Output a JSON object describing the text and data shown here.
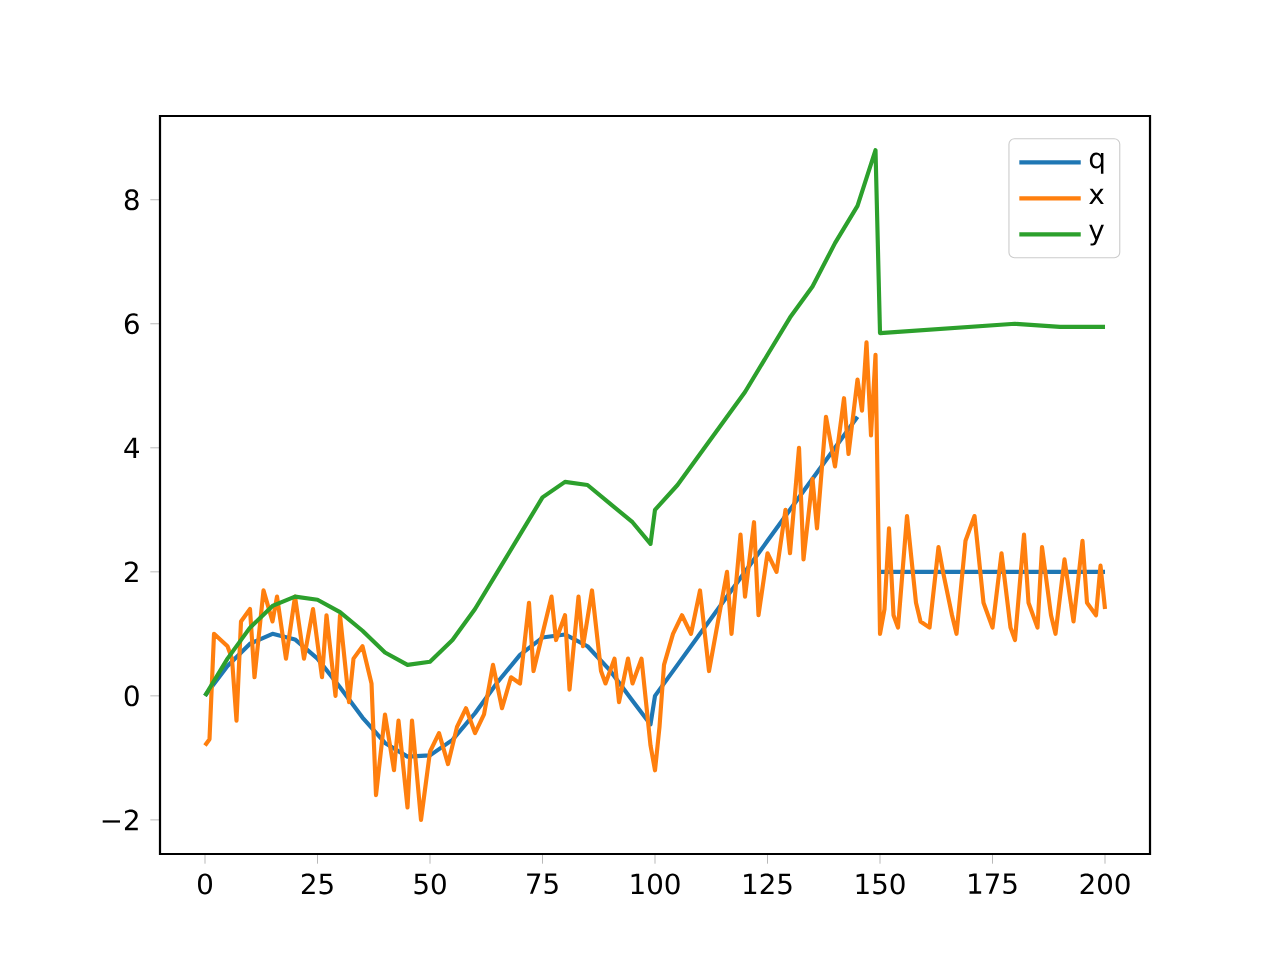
{
  "chart_data": {
    "type": "line",
    "xlim": [
      -10,
      210
    ],
    "ylim": [
      -2.55,
      9.35
    ],
    "xticks": [
      0,
      25,
      50,
      75,
      100,
      125,
      150,
      175,
      200
    ],
    "yticks": [
      {
        "value": -2,
        "label": "−2"
      },
      0,
      2,
      4,
      6,
      8
    ],
    "legend": "top right",
    "grid": false,
    "marker": "none",
    "line_style": "solid",
    "series": [
      {
        "name": "q",
        "color": "#1f77b4",
        "x": [
          0,
          5,
          10,
          15,
          20,
          25,
          30,
          35,
          40,
          45,
          50,
          55,
          60,
          65,
          70,
          75,
          80,
          85,
          90,
          95,
          99,
          100,
          105,
          110,
          115,
          120,
          125,
          130,
          135,
          140,
          145,
          149,
          150,
          200
        ],
        "values": [
          0,
          0.48,
          0.84,
          1.0,
          0.91,
          0.6,
          0.14,
          -0.35,
          -0.76,
          -0.98,
          -0.96,
          -0.71,
          -0.28,
          0.22,
          0.66,
          0.94,
          0.99,
          0.8,
          0.41,
          -0.08,
          -0.46,
          0,
          0.5,
          1.0,
          1.5,
          2.0,
          2.5,
          3.0,
          3.5,
          4.0,
          4.5,
          null,
          2,
          2
        ]
      },
      {
        "name": "x",
        "color": "#ff7f0e",
        "x": [
          0,
          1,
          2,
          5,
          6,
          7,
          8,
          10,
          11,
          13,
          15,
          16,
          18,
          20,
          22,
          24,
          26,
          27,
          29,
          30,
          32,
          33,
          35,
          37,
          38,
          40,
          42,
          43,
          45,
          46,
          48,
          50,
          52,
          54,
          56,
          58,
          60,
          62,
          64,
          66,
          68,
          70,
          72,
          73,
          75,
          77,
          78,
          80,
          81,
          83,
          84,
          86,
          88,
          89,
          91,
          92,
          94,
          95,
          97,
          99,
          100,
          101,
          102,
          104,
          106,
          108,
          110,
          112,
          114,
          116,
          117,
          119,
          120,
          122,
          123,
          125,
          127,
          129,
          130,
          132,
          133,
          135,
          136,
          138,
          140,
          142,
          143,
          145,
          146,
          147,
          148,
          149,
          150,
          151,
          152,
          153,
          154,
          156,
          158,
          159,
          161,
          163,
          164,
          166,
          167,
          169,
          171,
          173,
          175,
          177,
          179,
          180,
          182,
          183,
          185,
          186,
          188,
          189,
          191,
          193,
          195,
          196,
          198,
          199,
          200
        ],
        "values": [
          -0.8,
          -0.7,
          1.0,
          0.8,
          0.6,
          -0.4,
          1.2,
          1.4,
          0.3,
          1.7,
          1.2,
          1.6,
          0.6,
          1.6,
          0.6,
          1.4,
          0.3,
          1.3,
          0,
          1.3,
          -0.1,
          0.6,
          0.8,
          0.2,
          -1.6,
          -0.3,
          -1.2,
          -0.4,
          -1.8,
          -0.4,
          -2.0,
          -0.9,
          -0.6,
          -1.1,
          -0.5,
          -0.2,
          -0.6,
          -0.3,
          0.5,
          -0.2,
          0.3,
          0.2,
          1.5,
          0.4,
          1.0,
          1.6,
          0.9,
          1.3,
          0.1,
          1.6,
          0.8,
          1.7,
          0.4,
          0.2,
          0.6,
          -0.1,
          0.6,
          0.2,
          0.6,
          -0.8,
          -1.2,
          -0.5,
          0.5,
          1.0,
          1.3,
          1.0,
          1.7,
          0.4,
          1.2,
          2.0,
          1.0,
          2.6,
          1.6,
          2.8,
          1.3,
          2.3,
          2.0,
          3.0,
          2.3,
          4.0,
          2.2,
          3.5,
          2.7,
          4.5,
          3.7,
          4.8,
          3.9,
          5.1,
          4.6,
          5.7,
          4.2,
          5.5,
          1.0,
          1.4,
          2.7,
          1.3,
          1.1,
          2.9,
          1.5,
          1.2,
          1.1,
          2.4,
          2.0,
          1.3,
          1.0,
          2.5,
          2.9,
          1.5,
          1.1,
          2.3,
          1.1,
          0.9,
          2.6,
          1.5,
          1.1,
          2.4,
          1.3,
          1.0,
          2.2,
          1.2,
          2.5,
          1.5,
          1.3,
          2.1,
          1.4
        ]
      },
      {
        "name": "y",
        "color": "#2ca02c",
        "x": [
          0,
          5,
          10,
          15,
          20,
          25,
          30,
          35,
          40,
          45,
          50,
          55,
          60,
          65,
          70,
          75,
          80,
          85,
          90,
          95,
          99,
          100,
          105,
          110,
          115,
          120,
          125,
          130,
          135,
          140,
          145,
          149,
          150,
          160,
          170,
          180,
          190,
          200
        ],
        "values": [
          0,
          0.6,
          1.1,
          1.45,
          1.6,
          1.55,
          1.35,
          1.05,
          0.7,
          0.5,
          0.55,
          0.9,
          1.4,
          2.0,
          2.6,
          3.2,
          3.45,
          3.4,
          3.1,
          2.8,
          2.45,
          3.0,
          3.4,
          3.9,
          4.4,
          4.9,
          5.5,
          6.1,
          6.6,
          7.3,
          7.9,
          8.8,
          5.85,
          5.9,
          5.95,
          6.0,
          5.95,
          5.95
        ]
      }
    ]
  }
}
